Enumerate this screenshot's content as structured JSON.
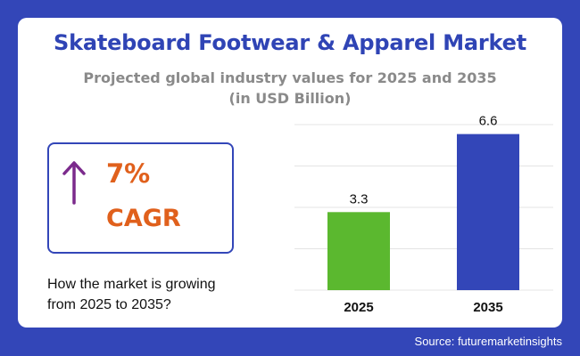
{
  "header": {
    "title": "Skateboard Footwear & Apparel Market",
    "subtitle_line1": "Projected global industry values for 2025 and 2035",
    "subtitle_line2": "(in USD Billion)"
  },
  "cagr": {
    "value": "7%",
    "label": "CAGR",
    "icon": "arrow-up-icon",
    "icon_color": "#7b2a8c",
    "text_color": "#e0601c"
  },
  "growth_text": {
    "line1": "How the market is growing",
    "line2": "from 2025 to 2035?"
  },
  "source": "Source: futuremarketinsights",
  "colors": {
    "background": "#3346b8",
    "title": "#2f44b5",
    "bar_2025": "#5bb82f",
    "bar_2035": "#3346b8"
  },
  "chart_data": {
    "type": "bar",
    "categories": [
      "2025",
      "2035"
    ],
    "values": [
      3.3,
      6.6
    ],
    "data_labels": [
      "3.3",
      "6.6"
    ],
    "bar_colors": [
      "#5bb82f",
      "#3346b8"
    ],
    "ylim": [
      0,
      7
    ],
    "grid": true,
    "legend": "none",
    "xlabel": "",
    "ylabel": ""
  }
}
